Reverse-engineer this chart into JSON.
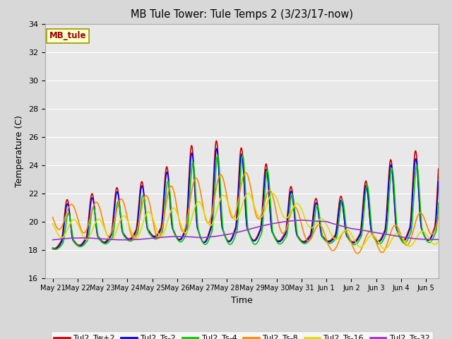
{
  "title": "MB Tule Tower: Tule Temps 2 (3/23/17-now)",
  "xlabel": "Time",
  "ylabel": "Temperature (C)",
  "ylim": [
    16,
    34
  ],
  "xlim_days": [
    -0.3,
    15.5
  ],
  "tick_labels": [
    "May 21",
    "May 22",
    "May 23",
    "May 24",
    "May 25",
    "May 26",
    "May 27",
    "May 28",
    "May 29",
    "May 30",
    "May 31",
    "Jun 1",
    "Jun 2",
    "Jun 3",
    "Jun 4",
    "Jun 5"
  ],
  "tick_positions": [
    0,
    1,
    2,
    3,
    4,
    5,
    6,
    7,
    8,
    9,
    10,
    11,
    12,
    13,
    14,
    15
  ],
  "series": {
    "Tul2_Tw+2": {
      "color": "#cc0000"
    },
    "Tul2_Ts-2": {
      "color": "#0000ee"
    },
    "Tul2_Ts-4": {
      "color": "#00cc00"
    },
    "Tul2_Ts-8": {
      "color": "#ff8800"
    },
    "Tul2_Ts-16": {
      "color": "#dddd00"
    },
    "Tul2_Ts-32": {
      "color": "#9933cc"
    }
  },
  "station_label": "MB_tule",
  "station_label_color": "#990000",
  "station_box_fill": "#ffffcc",
  "station_box_edge": "#999900",
  "bg_color": "#d8d8d8",
  "plot_bg": "#e8e8e8"
}
